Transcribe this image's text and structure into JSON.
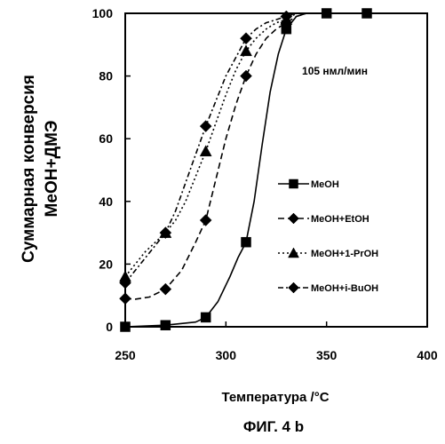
{
  "chart_data": {
    "type": "line",
    "title": "",
    "xlabel": "Температура /°C",
    "ylabel_lines": [
      "Суммарная конверсия",
      "MeOH+ДМЭ"
    ],
    "caption": "ФИГ. 4 b",
    "annotation": "105 нмл/мин",
    "xlim": [
      250,
      400
    ],
    "ylim": [
      0,
      100
    ],
    "xticks": [
      250,
      300,
      350,
      400
    ],
    "yticks": [
      0,
      20,
      40,
      60,
      80,
      100
    ],
    "grid": false,
    "legend_position": "right-middle",
    "series": [
      {
        "name": "MeOH",
        "marker": "square",
        "dash": "solid",
        "x": [
          250,
          270,
          290,
          310,
          330,
          350,
          370
        ],
        "y": [
          0,
          0.5,
          3,
          27,
          95,
          100,
          100
        ],
        "curve": [
          [
            250,
            0
          ],
          [
            270,
            0.5
          ],
          [
            285,
            1.5
          ],
          [
            290,
            3
          ],
          [
            296,
            8
          ],
          [
            302,
            16
          ],
          [
            306,
            22
          ],
          [
            310,
            27
          ],
          [
            314,
            40
          ],
          [
            318,
            58
          ],
          [
            322,
            75
          ],
          [
            326,
            87
          ],
          [
            330,
            95
          ],
          [
            335,
            99
          ],
          [
            340,
            100
          ],
          [
            350,
            100
          ],
          [
            370,
            100
          ]
        ]
      },
      {
        "name": "MeOH+EtOH",
        "marker": "diamond",
        "dash": "long-dash",
        "x": [
          250,
          270,
          290,
          310,
          330
        ],
        "y": [
          9,
          12,
          34,
          80,
          97
        ],
        "curve": [
          [
            250,
            9
          ],
          [
            255,
            8.8
          ],
          [
            262,
            9.5
          ],
          [
            270,
            12
          ],
          [
            278,
            18
          ],
          [
            285,
            27
          ],
          [
            290,
            34
          ],
          [
            295,
            47
          ],
          [
            300,
            60
          ],
          [
            305,
            71
          ],
          [
            310,
            80
          ],
          [
            315,
            87
          ],
          [
            320,
            92
          ],
          [
            325,
            95
          ],
          [
            330,
            97
          ],
          [
            335,
            99
          ],
          [
            340,
            100
          ],
          [
            350,
            100
          ],
          [
            370,
            100
          ]
        ]
      },
      {
        "name": "MeOH+1-PrOH",
        "marker": "triangle",
        "dash": "dotted",
        "x": [
          250,
          270,
          290,
          310,
          330
        ],
        "y": [
          16,
          30,
          56,
          88,
          98
        ],
        "curve": [
          [
            250,
            16
          ],
          [
            255,
            20
          ],
          [
            260,
            24
          ],
          [
            265,
            27
          ],
          [
            270,
            30
          ],
          [
            275,
            34
          ],
          [
            280,
            40
          ],
          [
            285,
            48
          ],
          [
            290,
            56
          ],
          [
            295,
            65
          ],
          [
            300,
            74
          ],
          [
            305,
            82
          ],
          [
            310,
            88
          ],
          [
            315,
            92
          ],
          [
            320,
            95
          ],
          [
            325,
            97
          ],
          [
            330,
            98
          ],
          [
            335,
            100
          ],
          [
            340,
            100
          ],
          [
            350,
            100
          ],
          [
            370,
            100
          ]
        ]
      },
      {
        "name": "MeOH+i-BuOH",
        "marker": "diamond",
        "dash": "dash-dot",
        "x": [
          250,
          270,
          290,
          310,
          330
        ],
        "y": [
          14,
          30,
          64,
          92,
          99
        ],
        "curve": [
          [
            250,
            14
          ],
          [
            255,
            18
          ],
          [
            260,
            22
          ],
          [
            265,
            26
          ],
          [
            270,
            30
          ],
          [
            275,
            37
          ],
          [
            280,
            46
          ],
          [
            285,
            55
          ],
          [
            290,
            64
          ],
          [
            295,
            72
          ],
          [
            300,
            80
          ],
          [
            305,
            86
          ],
          [
            310,
            92
          ],
          [
            315,
            95
          ],
          [
            320,
            97
          ],
          [
            325,
            98
          ],
          [
            330,
            99
          ],
          [
            335,
            100
          ],
          [
            340,
            100
          ],
          [
            350,
            100
          ],
          [
            370,
            100
          ]
        ]
      }
    ]
  }
}
